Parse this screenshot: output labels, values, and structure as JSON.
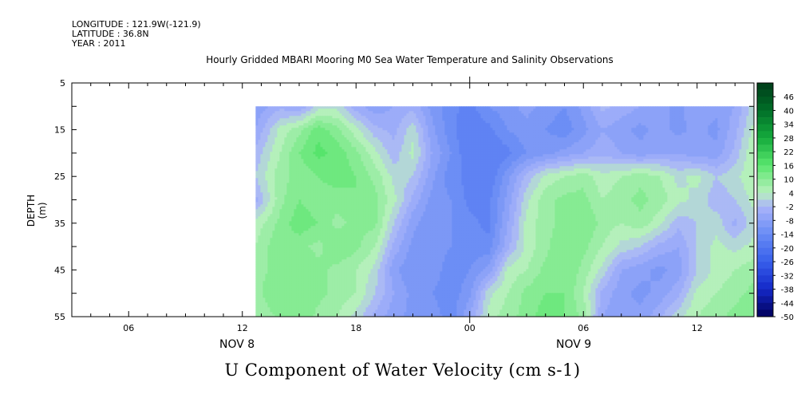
{
  "header": {
    "longitude": "LONGITUDE : 121.9W(-121.9)",
    "latitude": "LATITUDE : 36.8N",
    "year": "YEAR : 2011"
  },
  "chart_data": {
    "type": "heatmap",
    "title": "Hourly Gridded MBARI Mooring M0 Sea Water Temperature and Salinity Observations",
    "caption": "U Component of Water Velocity (cm s-1)",
    "ylabel": "DEPTH (m)",
    "y_ticks": [
      "5",
      "15",
      "25",
      "35",
      "45",
      "55"
    ],
    "x_ticks": [
      "06",
      "12",
      "18",
      "00",
      "06",
      "12"
    ],
    "x_day_labels": [
      "NOV  8",
      "NOV  9"
    ],
    "xlim_hours": [
      3,
      39
    ],
    "ylim_depth": [
      5,
      55
    ],
    "data_start_hour": 12.7,
    "data_end_hour": 39,
    "data_top_depth": 10,
    "colorbar_levels": [
      "46",
      "40",
      "34",
      "28",
      "22",
      "16",
      "10",
      "4",
      "-2",
      "-8",
      "-14",
      "-20",
      "-26",
      "-32",
      "-38",
      "-44",
      "-50"
    ],
    "colorbar_min": -50,
    "colorbar_max": 52,
    "colorbar_step": 3,
    "field_times": [
      12.7,
      14,
      15,
      16,
      17,
      18,
      19,
      20,
      21,
      22,
      23,
      24,
      25,
      26,
      27,
      28,
      29,
      30,
      31,
      32,
      33,
      34,
      35,
      36,
      37,
      38,
      39
    ],
    "field_depths": [
      10,
      15,
      20,
      25,
      30,
      35,
      40,
      45,
      50,
      55
    ],
    "field_values": [
      [
        -8,
        -4,
        -6,
        1,
        2,
        -5,
        -8,
        -6,
        -4,
        -10,
        -14,
        -16,
        -12,
        -10,
        -8,
        -10,
        -12,
        -8,
        -2,
        -4,
        -6,
        -8,
        -10,
        -6,
        -8,
        -6,
        2
      ],
      [
        -6,
        4,
        8,
        14,
        10,
        4,
        -2,
        -4,
        2,
        -8,
        -14,
        -18,
        -16,
        -12,
        -10,
        -12,
        -14,
        -10,
        -6,
        -8,
        -10,
        -8,
        -10,
        -8,
        -10,
        -4,
        4
      ],
      [
        -2,
        6,
        12,
        16,
        14,
        10,
        4,
        -2,
        4,
        -6,
        -12,
        -18,
        -18,
        -16,
        -12,
        -10,
        -8,
        -6,
        -4,
        -6,
        -8,
        -6,
        -6,
        -8,
        -8,
        -2,
        6
      ],
      [
        0,
        8,
        10,
        12,
        14,
        12,
        8,
        2,
        0,
        -8,
        -14,
        -16,
        -18,
        -10,
        -2,
        4,
        6,
        8,
        4,
        6,
        8,
        6,
        2,
        4,
        0,
        2,
        6
      ],
      [
        -4,
        8,
        12,
        10,
        10,
        12,
        10,
        4,
        -4,
        -10,
        -12,
        -16,
        -16,
        -8,
        2,
        8,
        10,
        10,
        6,
        8,
        10,
        8,
        4,
        2,
        -2,
        0,
        4
      ],
      [
        4,
        10,
        14,
        12,
        8,
        10,
        10,
        0,
        -8,
        -12,
        -12,
        -14,
        -16,
        -6,
        4,
        8,
        10,
        12,
        8,
        6,
        8,
        4,
        -2,
        0,
        2,
        -4,
        2
      ],
      [
        6,
        12,
        10,
        8,
        12,
        10,
        6,
        -4,
        -10,
        -10,
        -12,
        -14,
        -14,
        -4,
        4,
        8,
        12,
        10,
        6,
        2,
        0,
        -4,
        -6,
        0,
        4,
        2,
        4
      ],
      [
        8,
        10,
        12,
        10,
        8,
        6,
        2,
        -8,
        -12,
        -10,
        -14,
        -12,
        -8,
        4,
        6,
        10,
        12,
        8,
        2,
        -6,
        -8,
        -10,
        -8,
        0,
        4,
        6,
        8
      ],
      [
        8,
        12,
        12,
        10,
        8,
        6,
        0,
        -6,
        -10,
        -12,
        -14,
        -10,
        2,
        6,
        10,
        12,
        12,
        6,
        -4,
        -8,
        -10,
        -8,
        -4,
        4,
        6,
        8,
        10
      ],
      [
        6,
        10,
        12,
        8,
        6,
        2,
        -4,
        -8,
        -10,
        -10,
        -14,
        -6,
        4,
        8,
        10,
        14,
        12,
        8,
        -6,
        -8,
        -8,
        -4,
        2,
        6,
        8,
        10,
        12
      ]
    ]
  }
}
